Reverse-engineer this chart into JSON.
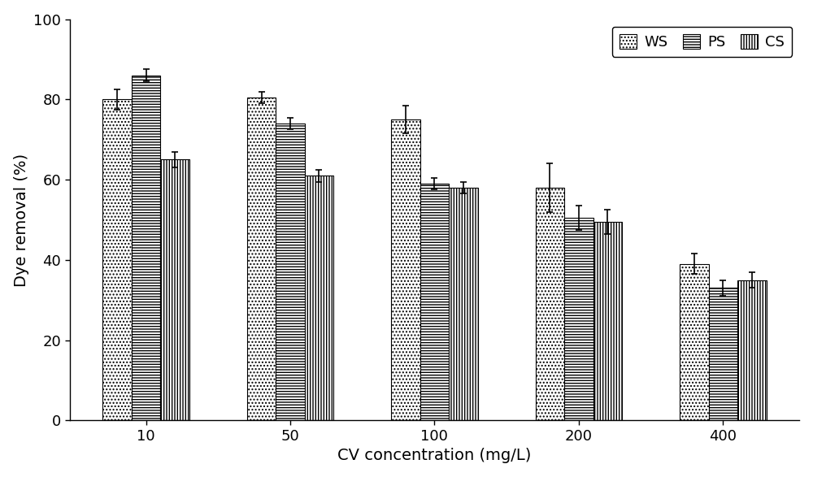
{
  "categories": [
    "10",
    "50",
    "100",
    "200",
    "400"
  ],
  "series": {
    "WS": [
      80,
      80.5,
      75,
      58,
      39
    ],
    "PS": [
      86,
      74,
      59,
      50.5,
      33
    ],
    "CS": [
      65,
      61,
      58,
      49.5,
      35
    ]
  },
  "errors": {
    "WS": [
      2.5,
      1.5,
      3.5,
      6,
      2.5
    ],
    "PS": [
      1.5,
      1.5,
      1.5,
      3,
      2
    ],
    "CS": [
      2,
      1.5,
      1.5,
      3,
      2
    ]
  },
  "ylabel": "Dye removal (%)",
  "xlabel": "CV concentration (mg/L)",
  "ylim": [
    0,
    100
  ],
  "yticks": [
    0,
    20,
    40,
    60,
    80,
    100
  ],
  "legend_labels": [
    "WS",
    "PS",
    "CS"
  ],
  "bar_width": 0.2,
  "background_color": "#ffffff",
  "axis_fontsize": 14,
  "tick_fontsize": 13,
  "legend_fontsize": 13
}
